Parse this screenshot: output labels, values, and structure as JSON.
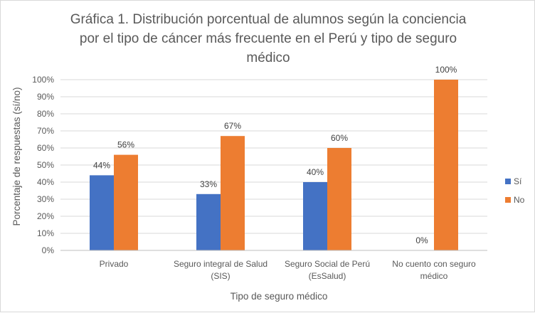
{
  "chart_data": {
    "type": "bar",
    "title_lines": [
      "Gráfica 1. Distribución porcentual de alumnos según la conciencia",
      "por el tipo de cáncer más frecuente en el Perú y tipo de seguro",
      "médico"
    ],
    "xlabel": "Tipo de seguro médico",
    "ylabel": "Porcentaje de respuestas (sí/no)",
    "ylim": [
      0,
      100
    ],
    "yticks": [
      "0%",
      "10%",
      "20%",
      "30%",
      "40%",
      "50%",
      "60%",
      "70%",
      "80%",
      "90%",
      "100%"
    ],
    "categories": [
      [
        "Privado"
      ],
      [
        "Seguro integral de Salud",
        "(SIS)"
      ],
      [
        "Seguro Social de Perú",
        "(EsSalud)"
      ],
      [
        "No cuento con seguro",
        "médico"
      ]
    ],
    "series": [
      {
        "name": "Sí",
        "color": "#4472C4",
        "values": [
          44,
          33,
          40,
          0
        ],
        "labels": [
          "44%",
          "33%",
          "40%",
          "0%"
        ]
      },
      {
        "name": "No",
        "color": "#ED7D31",
        "values": [
          56,
          67,
          60,
          100
        ],
        "labels": [
          "56%",
          "67%",
          "60%",
          "100%"
        ]
      }
    ],
    "grid": true,
    "legend_position": "right"
  }
}
